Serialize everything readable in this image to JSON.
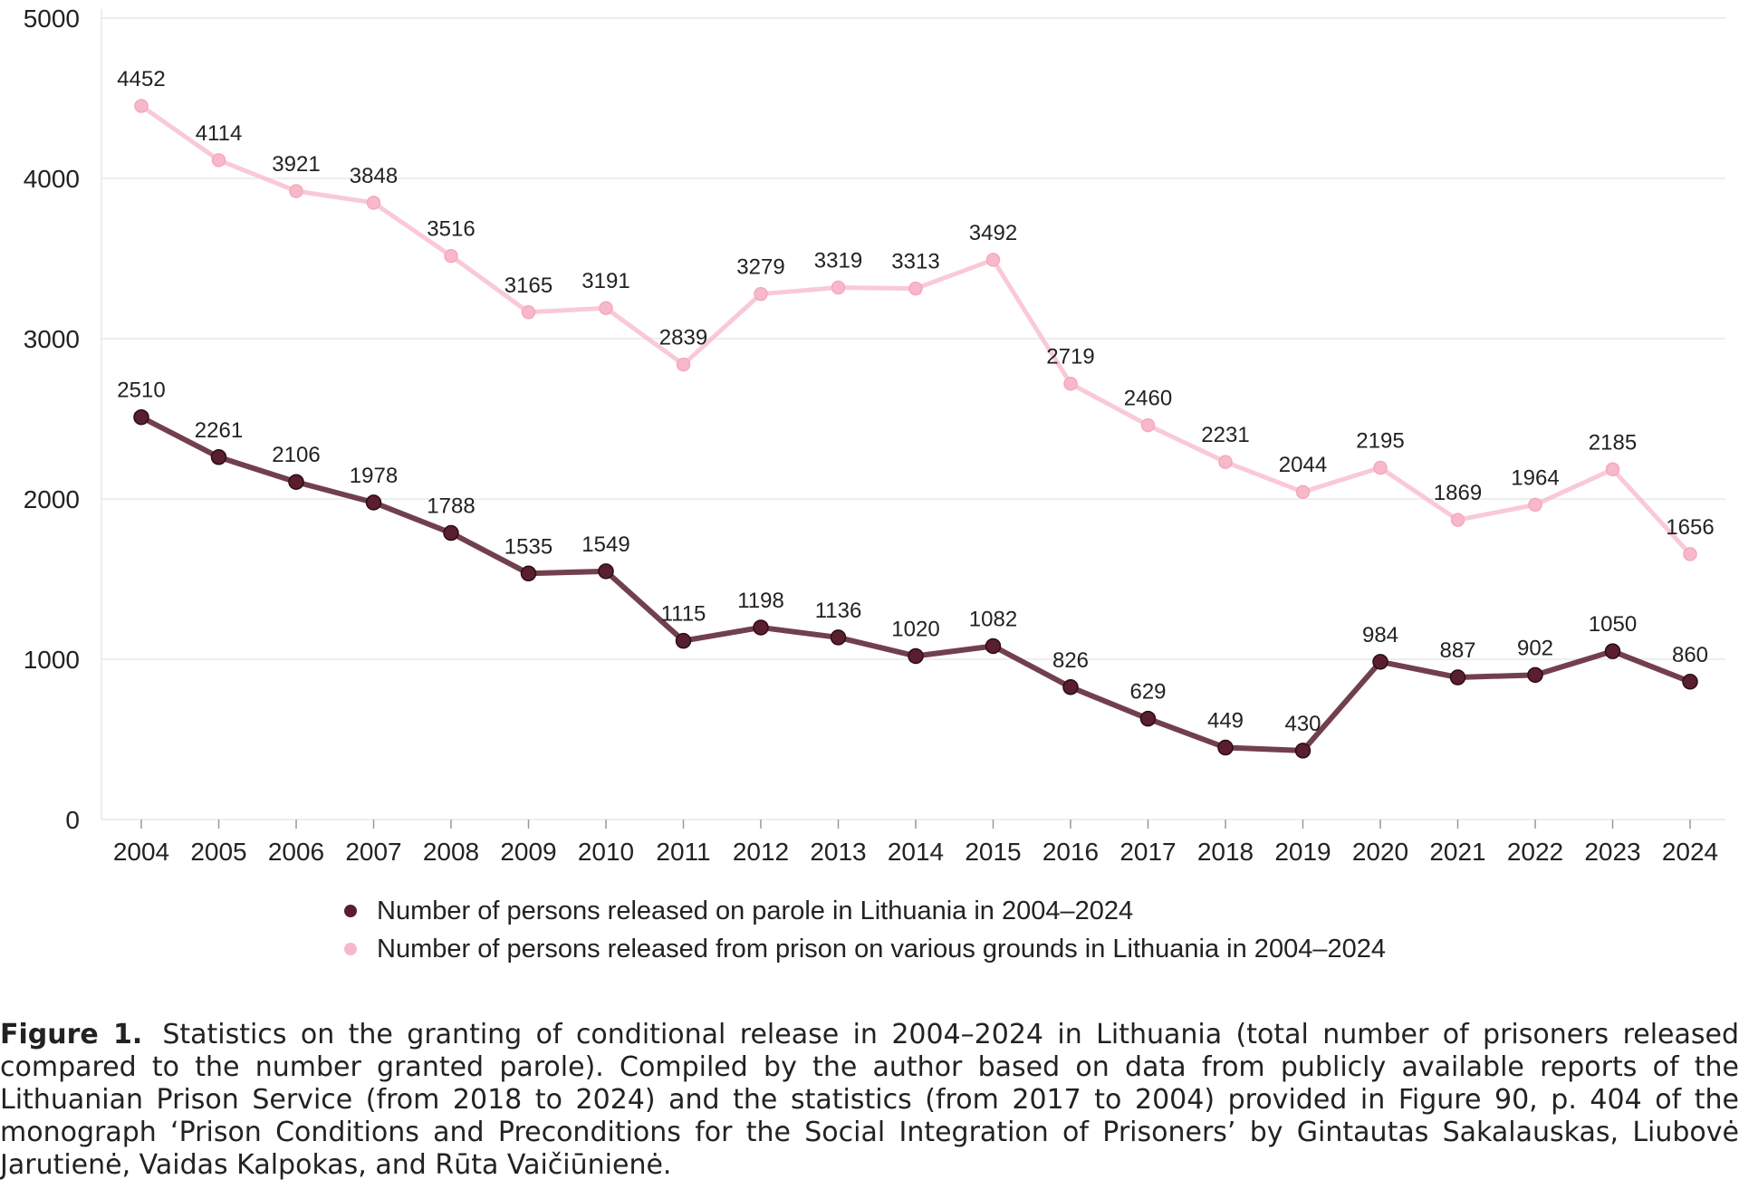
{
  "chart_data": {
    "type": "line",
    "categories": [
      "2004",
      "2005",
      "2006",
      "2007",
      "2008",
      "2009",
      "2010",
      "2011",
      "2012",
      "2013",
      "2014",
      "2015",
      "2016",
      "2017",
      "2018",
      "2019",
      "2020",
      "2021",
      "2022",
      "2023",
      "2024"
    ],
    "series": [
      {
        "name": "Number of persons released on parole in Lithuania in 2004–2024",
        "color": "#5a1f2e",
        "values": [
          2510,
          2261,
          2106,
          1978,
          1788,
          1535,
          1549,
          1115,
          1198,
          1136,
          1020,
          1082,
          826,
          629,
          449,
          430,
          984,
          887,
          902,
          1050,
          860
        ]
      },
      {
        "name": "Number of persons released from prison on various grounds in Lithuania in 2004–2024",
        "color": "#f7b9c9",
        "values": [
          4452,
          4114,
          3921,
          3848,
          3516,
          3165,
          3191,
          2839,
          3279,
          3319,
          3313,
          3492,
          2719,
          2460,
          2231,
          2044,
          2195,
          1869,
          1964,
          2185,
          1656
        ]
      }
    ],
    "yticks": [
      0,
      1000,
      2000,
      3000,
      4000,
      5000
    ],
    "ylim": [
      0,
      5000
    ],
    "grid": true,
    "legend_position": "bottom"
  },
  "legend": {
    "items": [
      {
        "label": "Number of persons released on parole in Lithuania in 2004–2024",
        "color": "#5a1f2e"
      },
      {
        "label": "Number of persons released from prison on various grounds in Lithuania in 2004–2024",
        "color": "#f7b9c9"
      }
    ]
  },
  "caption": {
    "figure_label": "Figure 1.",
    "text": "Statistics on the granting of conditional release in 2004–2024 in Lithuania (total number of prisoners released compared to the number granted parole). Compiled by the author based on data from publicly available reports of the Lithuanian Prison Service (from 2018 to 2024) and the statistics (from 2017 to 2004) provided in Figure 90, p. 404 of the monograph ‘Prison Conditions and Preconditions for the Social Integration of Prisoners’ by Gintautas Sakalauskas, Liubovė Jarutienė, Vaidas Kalpokas, and Rūta Vaičiūnienė."
  }
}
